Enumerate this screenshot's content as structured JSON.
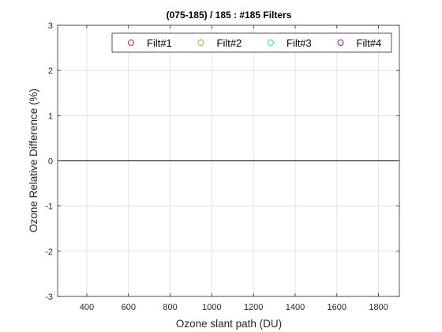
{
  "chart_data": {
    "type": "scatter",
    "title": "(075-185) / 185 : #185 Filters",
    "xlabel": "Ozone slant path (DU)",
    "ylabel": "Ozone Relative Difference (%)",
    "xlim": [
      260,
      1900
    ],
    "ylim": [
      -3,
      3
    ],
    "xticks": [
      400,
      600,
      800,
      1000,
      1200,
      1400,
      1600,
      1800
    ],
    "yticks": [
      -3,
      -2,
      -1,
      0,
      1,
      2,
      3
    ],
    "grid": true,
    "legend_position": "top-right",
    "reference_line_y": 0,
    "series": [
      {
        "name": "Filt#1",
        "color": "#d6202a",
        "marker": "circle",
        "x": [],
        "y": []
      },
      {
        "name": "Filt#2",
        "color": "#77d219",
        "marker": "circle",
        "x": [],
        "y": []
      },
      {
        "name": "Filt#3",
        "color": "#1ce4e8",
        "marker": "circle",
        "x": [],
        "y": []
      },
      {
        "name": "Filt#4",
        "color": "#7c1ea2",
        "marker": "circle",
        "x": [],
        "y": []
      }
    ]
  }
}
